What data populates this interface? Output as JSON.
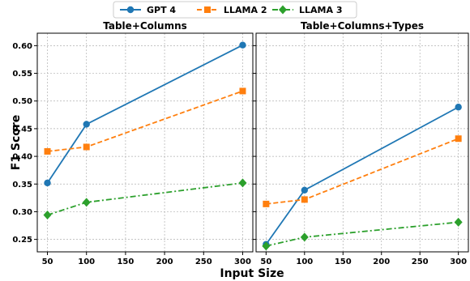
{
  "chart_data": {
    "type": "line",
    "xlabel": "Input Size",
    "ylabel": "F1 Score",
    "legend_position": "top-center",
    "grid": true,
    "series_styles": [
      {
        "name": "GPT 4",
        "color": "#1f77b4",
        "marker": "circle",
        "dash": "solid"
      },
      {
        "name": "LLAMA 2",
        "color": "#ff7f0e",
        "marker": "square",
        "dash": "dashed"
      },
      {
        "name": "LLAMA 3",
        "color": "#2ca02c",
        "marker": "diamond",
        "dash": "dashdot"
      }
    ],
    "x_ticks": [
      "50",
      "100",
      "150",
      "200",
      "250",
      "300"
    ],
    "y_ticks": [
      "0.25",
      "0.30",
      "0.35",
      "0.40",
      "0.45",
      "0.50",
      "0.55",
      "0.60"
    ],
    "xlim": [
      37,
      313
    ],
    "ylim": [
      0.2275,
      0.6225
    ],
    "panels": [
      {
        "title": "Table+Columns",
        "x": [
          50,
          100,
          300
        ],
        "series": [
          {
            "name": "GPT 4",
            "values": [
              0.352,
              0.458,
              0.601
            ]
          },
          {
            "name": "LLAMA 2",
            "values": [
              0.409,
              0.417,
              0.518
            ]
          },
          {
            "name": "LLAMA 3",
            "values": [
              0.294,
              0.317,
              0.352
            ]
          }
        ]
      },
      {
        "title": "Table+Columns+Types",
        "x": [
          50,
          100,
          300
        ],
        "series": [
          {
            "name": "GPT 4",
            "values": [
              0.241,
              0.339,
              0.489
            ]
          },
          {
            "name": "LLAMA 2",
            "values": [
              0.314,
              0.322,
              0.432
            ]
          },
          {
            "name": "LLAMA 3",
            "values": [
              0.238,
              0.254,
              0.281
            ]
          }
        ]
      }
    ]
  }
}
